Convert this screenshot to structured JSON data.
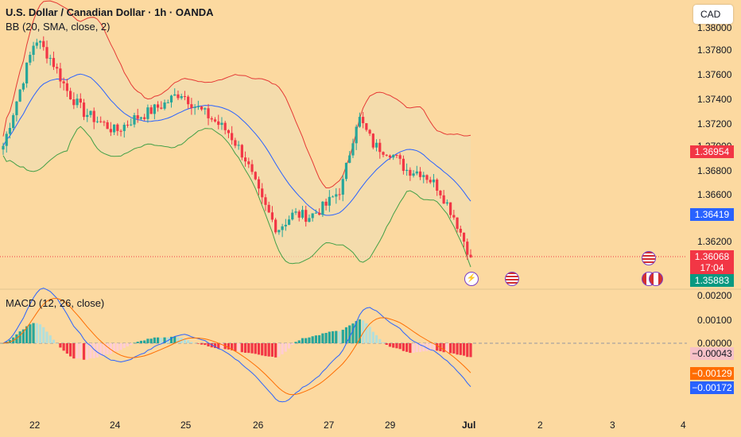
{
  "header": {
    "title": "U.S. Dollar / Canadian Dollar · 1h · OANDA",
    "bb_label": "BB (20, SMA, close, 2)",
    "macd_label": "MACD (12, 26, close)",
    "currency_button": "CAD"
  },
  "price_axis": [
    "1.38000",
    "1.37800",
    "1.37600",
    "1.37400",
    "1.37200",
    "1.37000",
    "1.36800",
    "1.36600",
    "1.36200"
  ],
  "macd_axis": [
    "0.00200",
    "0.00100",
    "0.00000"
  ],
  "time_axis": [
    "22",
    "24",
    "25",
    "26",
    "27",
    "29",
    "Jul",
    "2",
    "3",
    "4"
  ],
  "tags": {
    "bb_upper": "1.36954",
    "bb_basis": "1.36419",
    "last_price": "1.36068",
    "countdown": "17:04",
    "bb_lower": "1.35883",
    "macd_hist": "−0.00043",
    "signal": "−0.00129",
    "macd": "−0.00172"
  },
  "colors": {
    "background": "#fcd9a0",
    "up": "#26a69a",
    "down": "#f23645",
    "bb_upper": "#e53935",
    "bb_basis": "#2962ff",
    "bb_lower": "#43a047",
    "bb_fill": "#f2dcb0",
    "macd_line": "#2962ff",
    "signal_line": "#ff6d00"
  },
  "events": {
    "lightning": "lightning-icon",
    "us_flag": "us-flag-icon",
    "ca_flag": "canada-flag-icon"
  },
  "chart_data": [
    {
      "type": "candlestick",
      "title": "U.S. Dollar / Canadian Dollar · 1h · OANDA",
      "interval": "1h",
      "ylim": [
        1.3574,
        1.3806
      ],
      "x": [
        "22",
        "24",
        "25",
        "26",
        "27",
        "29",
        "Jul"
      ],
      "close_path": [
        1.37,
        1.3745,
        1.379,
        1.3772,
        1.3745,
        1.3728,
        1.372,
        1.3712,
        1.3722,
        1.3728,
        1.3735,
        1.3745,
        1.3732,
        1.3722,
        1.3711,
        1.369,
        1.3655,
        1.363,
        1.3643,
        1.3641,
        1.365,
        1.3665,
        1.3725,
        1.37,
        1.3695,
        1.368,
        1.3678,
        1.3665,
        1.364,
        1.3607
      ],
      "last_price": 1.36068,
      "overlays": [
        {
          "name": "BB upper",
          "last": 1.36954
        },
        {
          "name": "BB basis",
          "last": 1.36419
        },
        {
          "name": "BB lower",
          "last": 1.35883
        }
      ]
    },
    {
      "type": "bar",
      "title": "MACD (12, 26, close)",
      "ylim": [
        -0.0023,
        0.0025
      ],
      "series": [
        {
          "name": "MACD",
          "last": -0.00172
        },
        {
          "name": "Signal",
          "last": -0.00129
        },
        {
          "name": "Histogram",
          "last": -0.00043
        }
      ]
    }
  ]
}
